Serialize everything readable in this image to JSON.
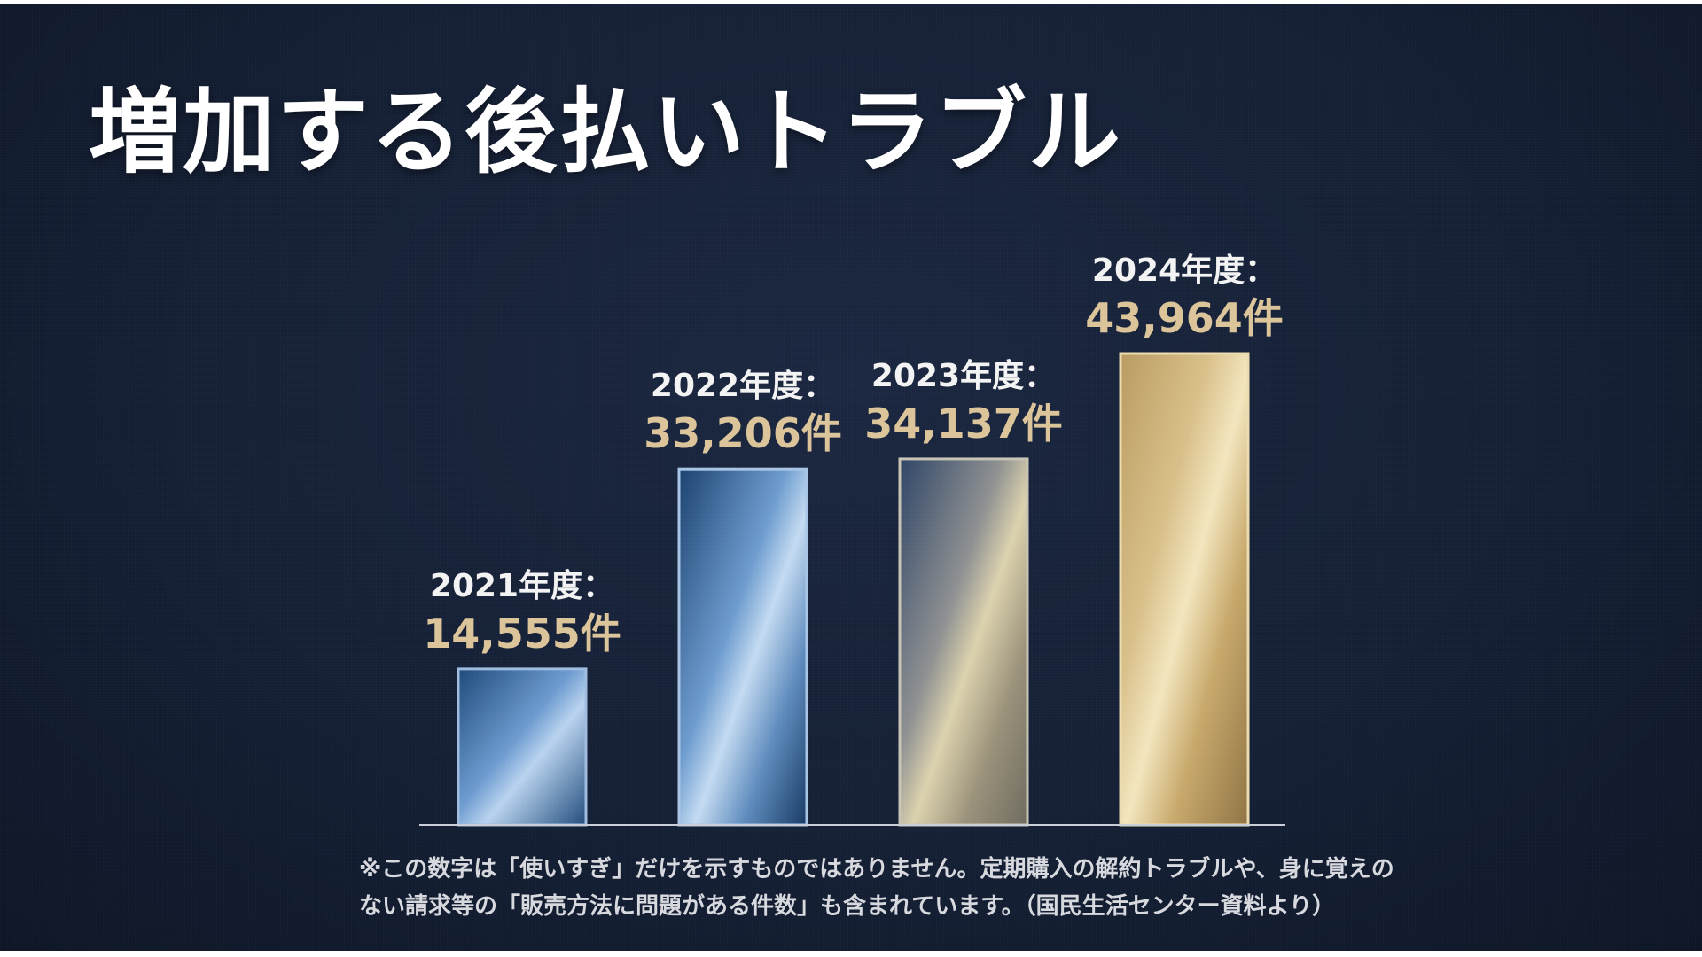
{
  "title": "増加する後払いトラブル",
  "chart_data": {
    "type": "bar",
    "categories": [
      "2021年度：",
      "2022年度：",
      "2023年度：",
      "2024年度："
    ],
    "values": [
      14555,
      33206,
      34137,
      43964
    ],
    "value_labels": [
      "14,555件",
      "33,206件",
      "34,137件",
      "43,964件"
    ],
    "unit": "件",
    "title": "増加する後払いトラブル",
    "xlabel": "",
    "ylabel": "",
    "grid": false,
    "bar_colors": [
      "#6f9cc9",
      "#7fa6d1",
      "#a8a48e",
      "#d6bf86"
    ]
  },
  "footnote": {
    "line1": "※この数字は「使いすぎ」だけを示すものではありません。定期購入の解約トラブルや、身に覚えの",
    "line2": "ない請求等の「販売方法に問題がある件数」も含まれています。（国民生活センター資料より）"
  }
}
